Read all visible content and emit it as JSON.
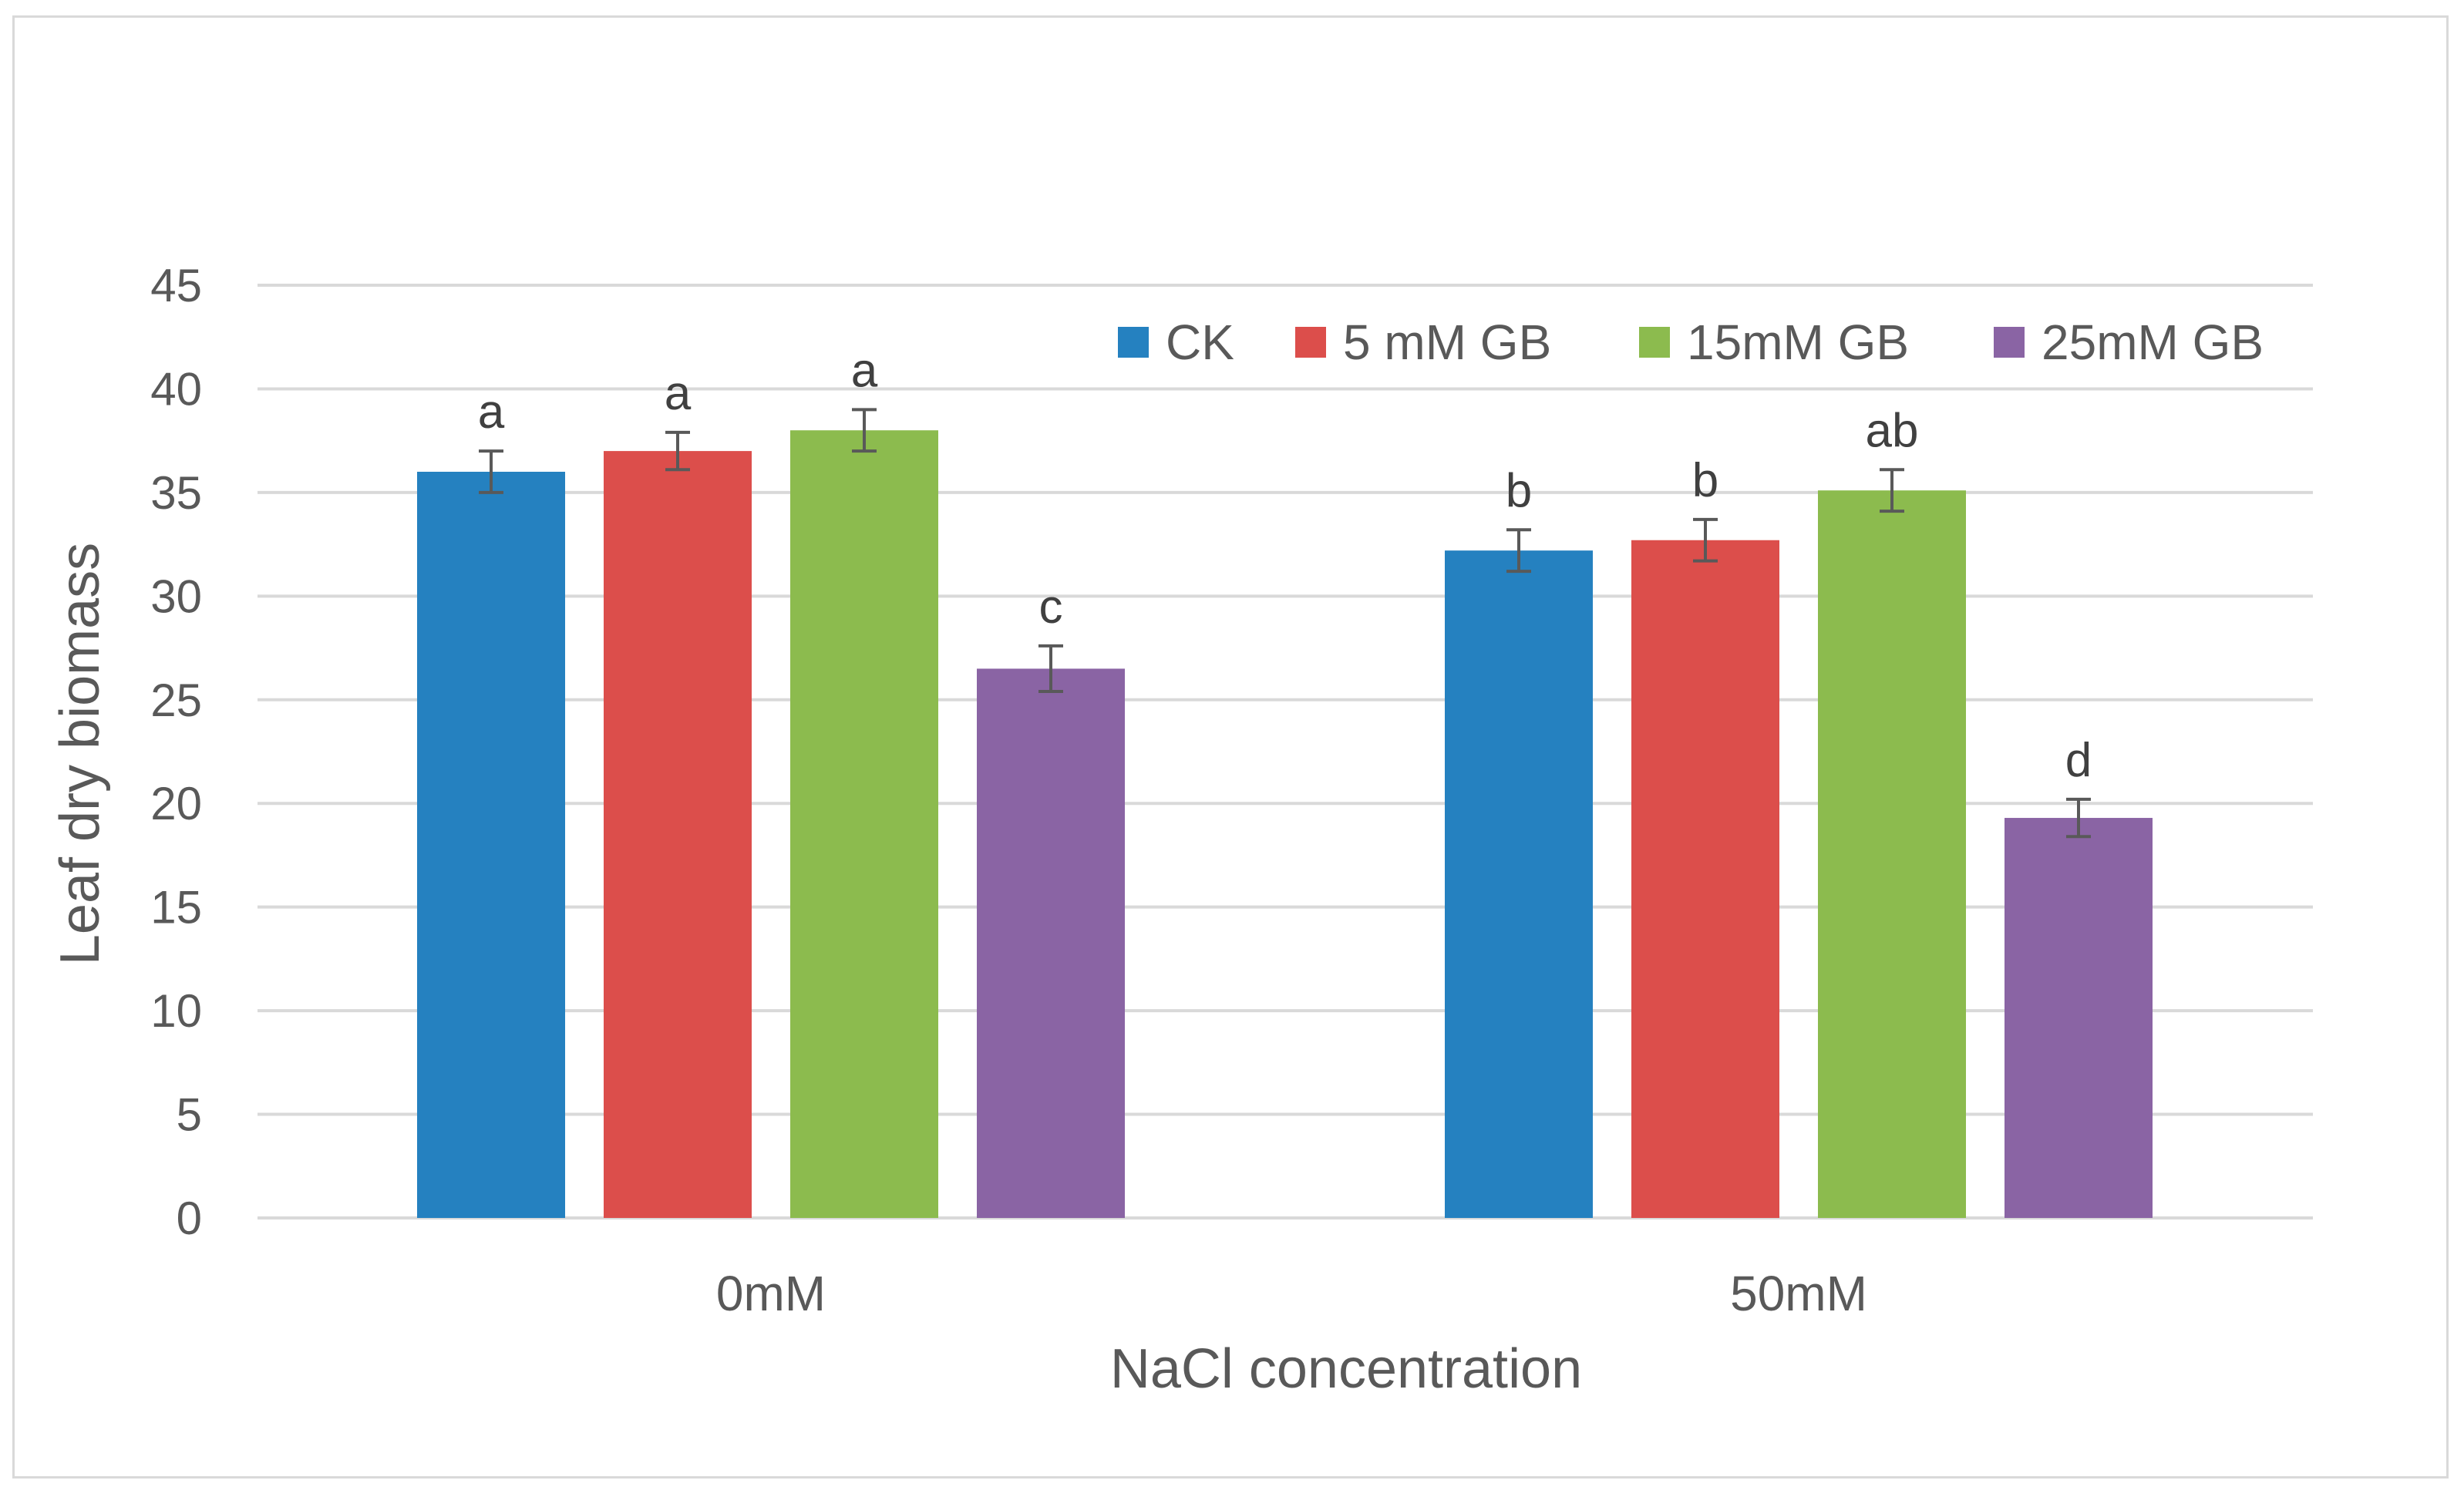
{
  "chart_data": {
    "type": "bar",
    "title": "",
    "xlabel": "NaCl concentration",
    "ylabel": "Leaf dry biomass",
    "ylim": [
      0,
      45
    ],
    "yticks": [
      0,
      5,
      10,
      15,
      20,
      25,
      30,
      35,
      40,
      45
    ],
    "grid": true,
    "legend_position": "top-right",
    "categories": [
      "0mM",
      "50mM"
    ],
    "series": [
      {
        "name": "CK",
        "color": "#2581C0",
        "values": [
          36.0,
          32.2
        ],
        "errors": [
          1.0,
          1.0
        ],
        "labels": [
          "a",
          "b"
        ]
      },
      {
        "name": "5 mM GB",
        "color": "#DC4E4B",
        "values": [
          37.0,
          32.7
        ],
        "errors": [
          0.9,
          1.0
        ],
        "labels": [
          "a",
          "b"
        ]
      },
      {
        "name": "15mM GB",
        "color": "#8CBB4E",
        "values": [
          38.0,
          35.1
        ],
        "errors": [
          1.0,
          1.0
        ],
        "labels": [
          "a",
          "ab"
        ]
      },
      {
        "name": "25mM GB",
        "color": "#8A64A4",
        "values": [
          26.5,
          19.3
        ],
        "errors": [
          1.1,
          0.9
        ],
        "labels": [
          "c",
          "d"
        ]
      }
    ]
  }
}
